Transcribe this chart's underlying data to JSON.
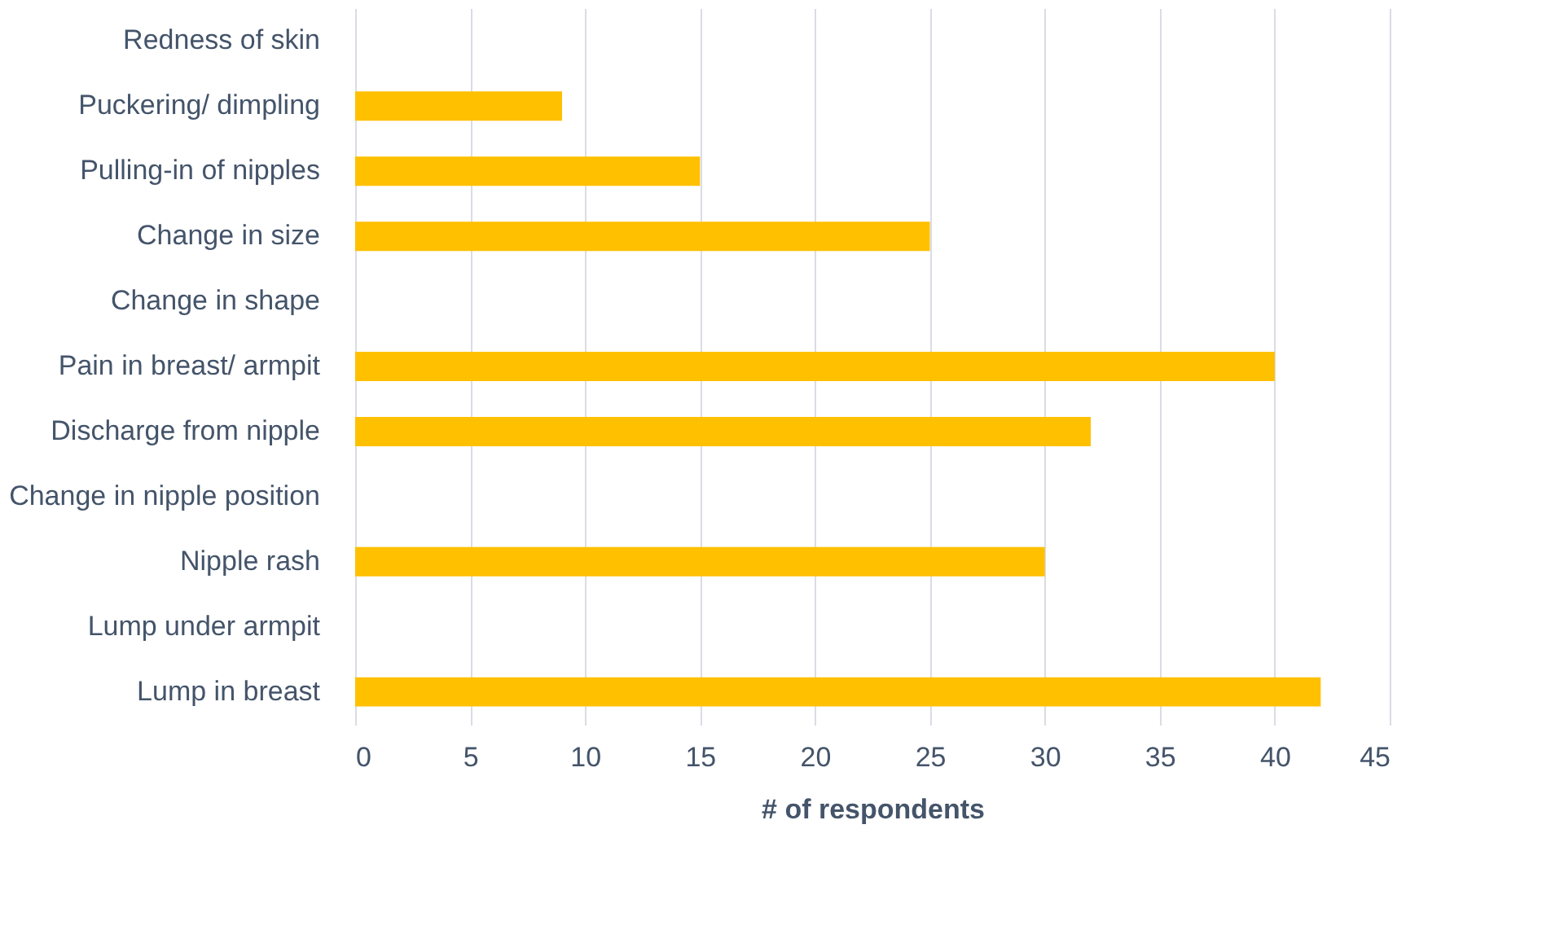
{
  "chart_data": {
    "type": "bar",
    "orientation": "horizontal",
    "xlabel": "# of respondents",
    "categories": [
      "Redness of skin",
      "Puckering/ dimpling",
      "Pulling-in of nipples",
      "Change in size",
      "Change in shape",
      "Pain in breast/ armpit",
      "Discharge from nipple",
      "Change in nipple position",
      "Nipple rash",
      "Lump under armpit",
      "Lump in breast"
    ],
    "values": [
      0,
      9,
      15,
      25,
      0,
      40,
      32,
      0,
      30,
      0,
      42
    ],
    "color": "#ffc000",
    "xlim": [
      0,
      45
    ],
    "xticks": [
      0,
      5,
      10,
      15,
      20,
      25,
      30,
      35,
      40,
      45
    ],
    "grid": "x"
  }
}
